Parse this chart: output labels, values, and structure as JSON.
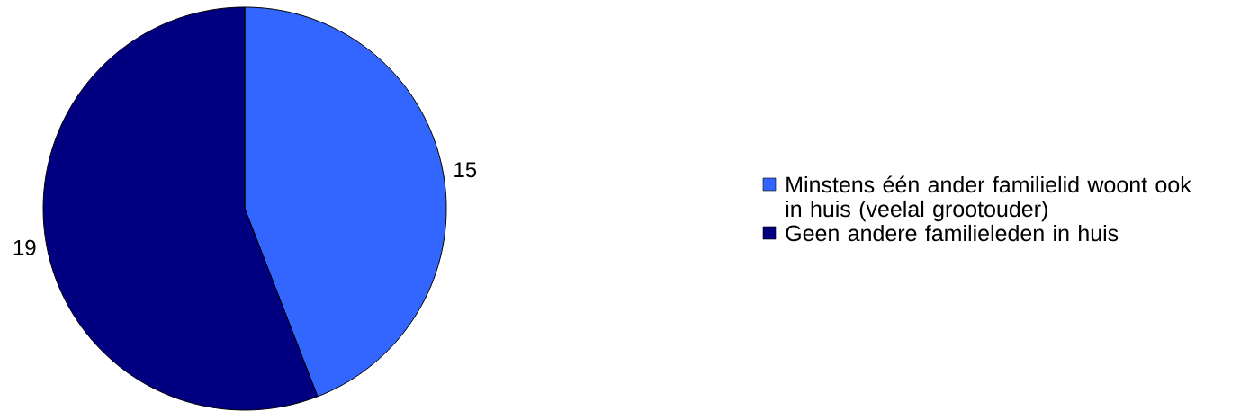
{
  "chart_data": {
    "type": "pie",
    "categories": [
      "Minstens één ander familielid woont ook in huis (veelal grootouder)",
      "Geen andere familieleden in huis"
    ],
    "values": [
      15,
      19
    ],
    "colors": [
      "#3366ff",
      "#000080"
    ],
    "data_labels": true,
    "legend": "right"
  }
}
